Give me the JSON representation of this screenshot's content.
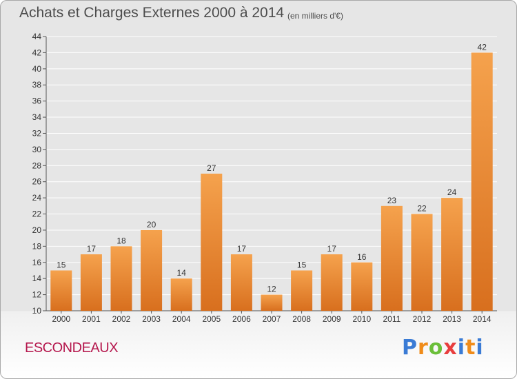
{
  "header": {
    "title": "Achats et Charges Externes 2000 à 2014",
    "unit": "(en milliers d'€)"
  },
  "footer": {
    "place": "ESCONDEAUX",
    "logo": "Proxiti"
  },
  "colors": {
    "bar_light": "#f5a24d",
    "bar_dark": "#d86f1e",
    "grid": "#ffffff",
    "place_text": "#b5174d"
  },
  "chart_data": {
    "type": "bar",
    "title": "Achats et Charges Externes 2000 à 2014",
    "subtitle": "(en milliers d'€)",
    "categories": [
      "2000",
      "2001",
      "2002",
      "2003",
      "2004",
      "2005",
      "2006",
      "2007",
      "2008",
      "2009",
      "2010",
      "2011",
      "2012",
      "2013",
      "2014"
    ],
    "values": [
      15,
      17,
      18,
      20,
      14,
      27,
      17,
      12,
      15,
      17,
      16,
      23,
      22,
      24,
      42
    ],
    "ylim": [
      10,
      44
    ],
    "yticks": [
      10,
      12,
      14,
      16,
      18,
      20,
      22,
      24,
      26,
      28,
      30,
      32,
      34,
      36,
      38,
      40,
      42,
      44
    ],
    "grid": true,
    "data_labels": true
  }
}
